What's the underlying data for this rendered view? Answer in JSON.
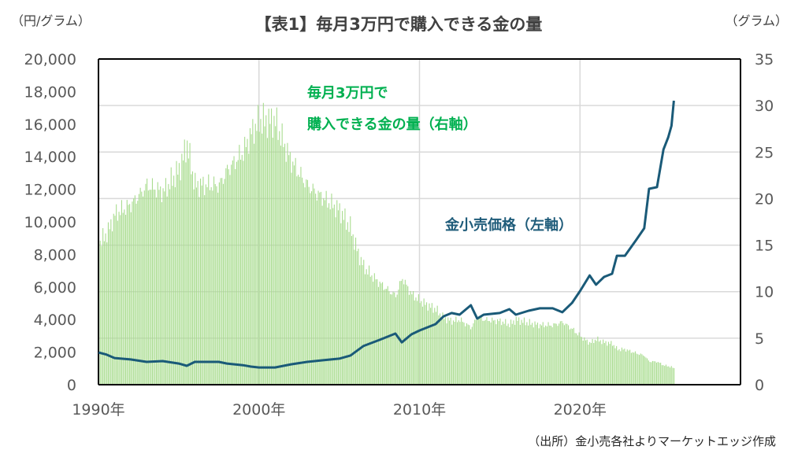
{
  "chart_data": {
    "type": "bar+line",
    "title": "【表1】毎月3万円で購入できる金の量",
    "left_axis_unit": "（円/グラム）",
    "right_axis_unit": "（グラム）",
    "source": "（出所）金小売各社よりマーケットエッジ作成",
    "left_ylim": [
      0,
      20000
    ],
    "right_ylim": [
      0,
      35
    ],
    "xlim": [
      1990,
      2030
    ],
    "left_ticks": [
      "0",
      "2,000",
      "4,000",
      "6,000",
      "8,000",
      "10,000",
      "12,000",
      "14,000",
      "16,000",
      "18,000",
      "20,000"
    ],
    "right_ticks": [
      "0",
      "5",
      "10",
      "15",
      "20",
      "25",
      "30",
      "35"
    ],
    "x_ticks": [
      {
        "year": 1990,
        "label": "1990年"
      },
      {
        "year": 2000,
        "label": "2000年"
      },
      {
        "year": 2010,
        "label": "2010年"
      },
      {
        "year": 2020,
        "label": "2020年"
      }
    ],
    "grid": "horizontal at right-axis ticks, vertical at decades",
    "monthly_budget_yen": 30000,
    "annotations": {
      "bars_line1": "毎月3万円で",
      "bars_line2": "購入できる金の量（右軸）",
      "line": "金小売価格（左軸）"
    },
    "series": [
      {
        "name": "金小売価格（左軸）",
        "axis": "left",
        "kind": "line",
        "x": [
          1990.0,
          1990.5,
          1991,
          1992,
          1993,
          1994,
          1995,
          1995.5,
          1996,
          1997,
          1997.5,
          1998,
          1999,
          1999.5,
          2000,
          2001,
          2002,
          2003,
          2004,
          2005,
          2005.7,
          2006.5,
          2007.5,
          2008.5,
          2008.9,
          2009.5,
          2010,
          2011,
          2011.5,
          2012,
          2012.5,
          2013.2,
          2013.6,
          2014,
          2015,
          2015.6,
          2016,
          2016.8,
          2017.5,
          2018.3,
          2018.9,
          2019.5,
          2020.0,
          2020.6,
          2021.0,
          2021.5,
          2022.0,
          2022.3,
          2022.8,
          2023.5,
          2024.0,
          2024.3,
          2024.8,
          2025.2,
          2025.5,
          2025.7,
          2025.85
        ],
        "values": [
          1980,
          1850,
          1640,
          1550,
          1400,
          1450,
          1300,
          1160,
          1400,
          1400,
          1400,
          1300,
          1200,
          1110,
          1060,
          1060,
          1250,
          1400,
          1500,
          1600,
          1790,
          2370,
          2750,
          3140,
          2600,
          3090,
          3330,
          3720,
          4200,
          4400,
          4300,
          4880,
          4060,
          4300,
          4400,
          4640,
          4300,
          4540,
          4690,
          4690,
          4450,
          5020,
          5750,
          6710,
          6140,
          6620,
          6810,
          7920,
          7920,
          8890,
          9610,
          12030,
          12130,
          14440,
          15200,
          15900,
          17440
        ],
        "color": "#1a5a78"
      },
      {
        "name": "毎月3万円で購入できる金の量（右軸）",
        "axis": "right",
        "kind": "bar",
        "note_values": "grams = monthly_budget_yen / price, monthly bars 1990–2025.85",
        "color": "#a9dc8f"
      }
    ],
    "colors": {
      "ann_green": "#00b050",
      "ann_blue": "#1f5c7a",
      "grid": "#d9d9d9"
    }
  }
}
